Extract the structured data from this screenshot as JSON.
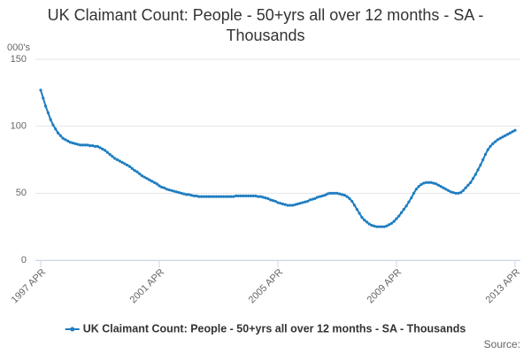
{
  "chart_data": {
    "type": "line",
    "title": "UK Claimant Count: People - 50+yrs all over 12 months - SA - Thousands",
    "y_label": "000's",
    "source": "Source:",
    "categories": [
      "1997 APR",
      null,
      null,
      null,
      null,
      null,
      null,
      null,
      null,
      null,
      null,
      null,
      null,
      null,
      null,
      null,
      null,
      null,
      null,
      null,
      null,
      null,
      null,
      null,
      null,
      null,
      null,
      null,
      null,
      null,
      null,
      null,
      null,
      null,
      null,
      null,
      null,
      null,
      null,
      null,
      null,
      null,
      null,
      null,
      null,
      null,
      null,
      null,
      "2001 APR",
      null,
      null,
      null,
      null,
      null,
      null,
      null,
      null,
      null,
      null,
      null,
      null,
      null,
      null,
      null,
      null,
      null,
      null,
      null,
      null,
      null,
      null,
      null,
      null,
      null,
      null,
      null,
      null,
      null,
      null,
      null,
      null,
      null,
      null,
      null,
      null,
      null,
      null,
      null,
      null,
      null,
      null,
      null,
      null,
      null,
      null,
      null,
      "2005 APR",
      null,
      null,
      null,
      null,
      null,
      null,
      null,
      null,
      null,
      null,
      null,
      null,
      null,
      null,
      null,
      null,
      null,
      null,
      null,
      null,
      null,
      null,
      null,
      null,
      null,
      null,
      null,
      null,
      null,
      null,
      null,
      null,
      null,
      null,
      null,
      null,
      null,
      null,
      null,
      null,
      null,
      null,
      null,
      null,
      null,
      null,
      null,
      "2009 APR",
      null,
      null,
      null,
      null,
      null,
      null,
      null,
      null,
      null,
      null,
      null,
      null,
      null,
      null,
      null,
      null,
      null,
      null,
      null,
      null,
      null,
      null,
      null,
      null,
      null,
      null,
      null,
      null,
      null,
      null,
      null,
      null,
      null,
      null,
      null,
      null,
      null,
      null,
      null,
      null,
      null,
      null,
      null,
      null,
      null,
      null,
      null,
      "2013 APR"
    ],
    "series": [
      {
        "name": "UK Claimant Count: People - 50+yrs all over 12 months - SA - Thousands",
        "color": "#1f7dc1",
        "values": [
          127,
          121,
          115,
          110,
          105,
          101,
          98,
          95,
          93,
          91,
          90,
          89,
          88,
          87.5,
          87,
          86.5,
          86,
          86,
          86,
          86,
          85.5,
          85.5,
          85,
          85,
          84,
          83,
          82,
          80.5,
          79,
          77.5,
          76,
          75,
          74,
          73,
          72,
          71,
          70,
          68.5,
          67,
          66,
          64.5,
          63,
          62,
          61,
          60,
          59,
          58,
          57,
          55.5,
          54.5,
          54,
          53,
          52.5,
          52,
          51.5,
          51,
          50.5,
          50,
          49.5,
          49,
          49,
          48.5,
          48,
          48,
          47.5,
          47.5,
          47.5,
          47.5,
          47.5,
          47.5,
          47.5,
          47.5,
          47.5,
          47.5,
          47.5,
          47.5,
          47.5,
          47.5,
          47.5,
          48,
          48,
          48,
          48,
          48,
          48,
          48,
          48,
          48,
          47.5,
          47.5,
          47,
          46.5,
          46,
          45,
          44.5,
          44,
          43,
          42.5,
          42,
          41.5,
          41,
          41,
          41,
          41.5,
          42,
          42.5,
          43,
          43.5,
          44,
          45,
          45.5,
          46,
          47,
          47.5,
          48,
          48.5,
          49.5,
          50,
          50,
          50,
          50,
          49.5,
          49,
          48.5,
          47.5,
          46,
          44,
          41,
          38,
          35,
          32,
          30,
          28.5,
          27,
          26,
          25.5,
          25,
          25,
          25,
          25,
          25.5,
          26.5,
          27.5,
          29,
          31,
          33,
          35.5,
          38,
          40.5,
          43.5,
          46.5,
          50,
          53,
          55,
          56.5,
          57.5,
          58,
          58,
          58,
          57.5,
          57,
          56,
          55,
          54,
          53,
          52,
          51,
          50.5,
          50,
          50,
          50.5,
          52,
          54,
          56,
          58,
          61,
          64,
          67.5,
          71,
          75,
          79,
          82.5,
          85,
          87,
          88.5,
          90,
          91,
          92,
          93,
          94,
          95,
          96,
          97
        ]
      }
    ],
    "ylim": [
      0,
      150
    ],
    "yticks": [
      0,
      50,
      100,
      150
    ],
    "grid": true,
    "legend": "bottom"
  }
}
